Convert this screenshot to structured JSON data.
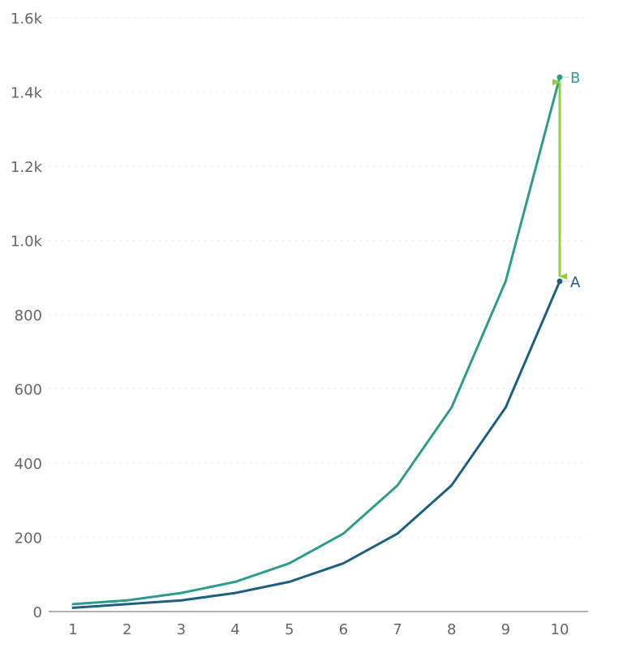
{
  "chart_data": {
    "type": "line",
    "title": "",
    "xlabel": "",
    "ylabel": "",
    "x": [
      1,
      2,
      3,
      4,
      5,
      6,
      7,
      8,
      9,
      10
    ],
    "xlim": [
      1,
      10
    ],
    "ylim": [
      0,
      1600
    ],
    "yticks": [
      0,
      200,
      400,
      600,
      800,
      1000,
      1200,
      1400,
      1600
    ],
    "ytick_labels": [
      "0",
      "200",
      "400",
      "600",
      "800",
      "1.0k",
      "1.2k",
      "1.4k",
      "1.6k"
    ],
    "xtick_labels": [
      "1",
      "2",
      "3",
      "4",
      "5",
      "6",
      "7",
      "8",
      "9",
      "10"
    ],
    "grid": "horizontal dotted",
    "series": [
      {
        "name": "A",
        "color": "#1d5f80",
        "values": [
          10,
          20,
          30,
          50,
          80,
          130,
          210,
          340,
          550,
          890
        ]
      },
      {
        "name": "B",
        "color": "#2e9c8c",
        "values": [
          20,
          30,
          50,
          80,
          130,
          210,
          340,
          550,
          890,
          1440
        ]
      }
    ],
    "annotations": [
      {
        "type": "double-arrow",
        "x": 10,
        "from": 890,
        "to": 1440,
        "color": "#8ed23c"
      }
    ]
  }
}
